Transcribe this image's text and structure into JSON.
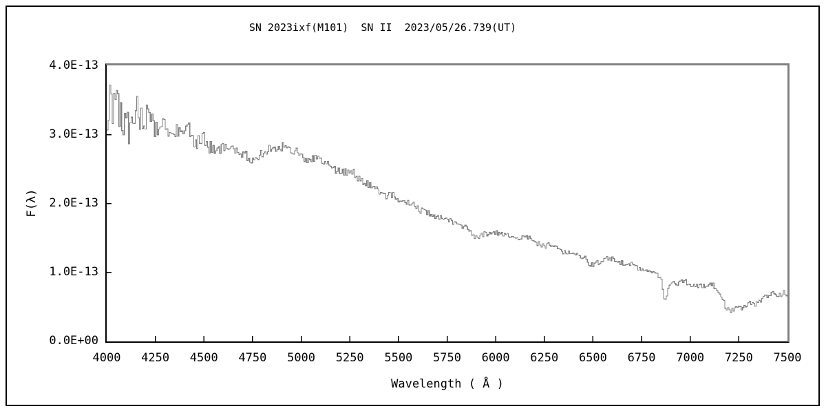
{
  "chart_data": {
    "type": "line",
    "title": "SN 2023ixf(M101)  SN II  2023/05/26.739(UT)",
    "xlabel": "Wavelength ( Å )",
    "ylabel": "F(λ)",
    "xlim": [
      4000,
      7500
    ],
    "ylim_e13": [
      0,
      4.0
    ],
    "grid": "off",
    "legend": "none",
    "x_ticks": [
      4000,
      4250,
      4500,
      4750,
      5000,
      5250,
      5500,
      5750,
      6000,
      6250,
      6500,
      6750,
      7000,
      7250,
      7500
    ],
    "y_ticks": [
      {
        "value_e13": 4.0,
        "label": "4.0E-13"
      },
      {
        "value_e13": 3.0,
        "label": "3.0E-13"
      },
      {
        "value_e13": 2.0,
        "label": "2.0E-13"
      },
      {
        "value_e13": 1.0,
        "label": "1.0E-13"
      },
      {
        "value_e13": 0.0,
        "label": "0.0E+00"
      }
    ],
    "series": [
      {
        "name": "spectrum",
        "trend_points_e13": [
          [
            4000,
            3.38
          ],
          [
            4050,
            3.36
          ],
          [
            4100,
            3.32
          ],
          [
            4150,
            3.27
          ],
          [
            4200,
            3.22
          ],
          [
            4270,
            3.15
          ],
          [
            4330,
            3.08
          ],
          [
            4400,
            3.03
          ],
          [
            4450,
            2.97
          ],
          [
            4520,
            2.88
          ],
          [
            4600,
            2.78
          ],
          [
            4650,
            2.72
          ],
          [
            4700,
            2.66
          ],
          [
            4750,
            2.7
          ],
          [
            4800,
            2.75
          ],
          [
            4860,
            2.82
          ],
          [
            4930,
            2.79
          ],
          [
            4990,
            2.72
          ],
          [
            5050,
            2.64
          ],
          [
            5110,
            2.58
          ],
          [
            5170,
            2.53
          ],
          [
            5230,
            2.45
          ],
          [
            5290,
            2.37
          ],
          [
            5340,
            2.27
          ],
          [
            5400,
            2.18
          ],
          [
            5460,
            2.09
          ],
          [
            5520,
            2.02
          ],
          [
            5580,
            1.96
          ],
          [
            5650,
            1.85
          ],
          [
            5700,
            1.79
          ],
          [
            5760,
            1.74
          ],
          [
            5815,
            1.71
          ],
          [
            5860,
            1.6
          ],
          [
            5885,
            1.5
          ],
          [
            5905,
            1.47
          ],
          [
            5935,
            1.56
          ],
          [
            5990,
            1.56
          ],
          [
            6050,
            1.53
          ],
          [
            6110,
            1.5
          ],
          [
            6170,
            1.47
          ],
          [
            6230,
            1.4
          ],
          [
            6290,
            1.37
          ],
          [
            6320,
            1.31
          ],
          [
            6400,
            1.3
          ],
          [
            6440,
            1.22
          ],
          [
            6480,
            1.12
          ],
          [
            6515,
            1.09
          ],
          [
            6560,
            1.24
          ],
          [
            6600,
            1.2
          ],
          [
            6640,
            1.15
          ],
          [
            6710,
            1.08
          ],
          [
            6780,
            1.03
          ],
          [
            6830,
            0.98
          ],
          [
            6852,
            0.9
          ],
          [
            6862,
            0.64
          ],
          [
            6875,
            0.62
          ],
          [
            6888,
            0.8
          ],
          [
            6910,
            0.83
          ],
          [
            6935,
            0.8
          ],
          [
            6965,
            0.86
          ],
          [
            7000,
            0.76
          ],
          [
            7030,
            0.78
          ],
          [
            7070,
            0.81
          ],
          [
            7110,
            0.8
          ],
          [
            7135,
            0.74
          ],
          [
            7155,
            0.67
          ],
          [
            7180,
            0.53
          ],
          [
            7200,
            0.44
          ],
          [
            7220,
            0.43
          ],
          [
            7240,
            0.47
          ],
          [
            7260,
            0.43
          ],
          [
            7285,
            0.5
          ],
          [
            7300,
            0.55
          ],
          [
            7320,
            0.51
          ],
          [
            7355,
            0.55
          ],
          [
            7390,
            0.64
          ],
          [
            7420,
            0.7
          ],
          [
            7450,
            0.67
          ],
          [
            7480,
            0.72
          ],
          [
            7500,
            0.68
          ]
        ],
        "noise_profile_e13": [
          [
            4000,
            0.55
          ],
          [
            4060,
            0.48
          ],
          [
            4120,
            0.4
          ],
          [
            4200,
            0.26
          ],
          [
            4300,
            0.2
          ],
          [
            4400,
            0.16
          ],
          [
            4550,
            0.12
          ],
          [
            4700,
            0.1
          ],
          [
            4900,
            0.085
          ],
          [
            5100,
            0.08
          ],
          [
            5300,
            0.075
          ],
          [
            5600,
            0.06
          ],
          [
            5900,
            0.055
          ],
          [
            6200,
            0.05
          ],
          [
            6500,
            0.05
          ],
          [
            6800,
            0.04
          ],
          [
            6900,
            0.045
          ],
          [
            7000,
            0.05
          ],
          [
            7200,
            0.055
          ],
          [
            7350,
            0.055
          ],
          [
            7500,
            0.06
          ]
        ]
      }
    ],
    "sample_step_angstrom": 7,
    "noise_seed": 20230526
  },
  "colors": {
    "background": "#ffffff",
    "spectrum_line": "#808080",
    "frame_top_right": "#808080",
    "axis_black": "#000000",
    "text": "#000000"
  }
}
